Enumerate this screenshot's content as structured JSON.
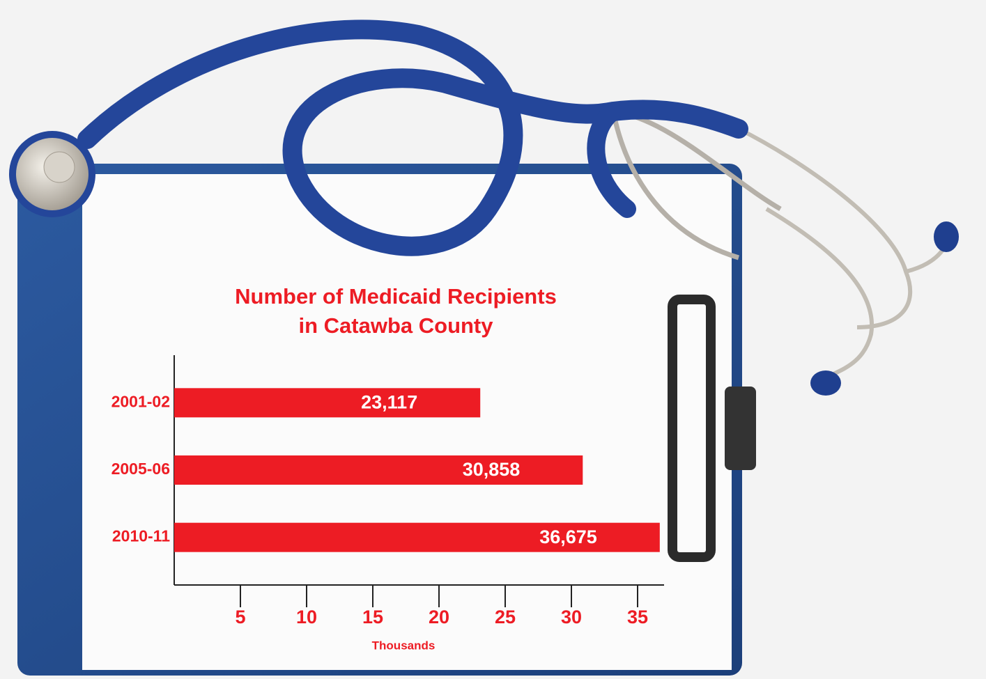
{
  "chart_data": {
    "type": "bar",
    "orientation": "horizontal",
    "title": [
      "Number of Medicaid Recipients",
      "in Catawba County"
    ],
    "categories": [
      "2001-02",
      "2005-06",
      "2010-11"
    ],
    "values": [
      23.117,
      30.858,
      36.675
    ],
    "value_labels": [
      "23,117",
      "30,858",
      "36,675"
    ],
    "color": "#ed1c24",
    "xlabel": "Thousands",
    "xlim": [
      0,
      37
    ],
    "xticks": [
      5,
      10,
      15,
      20,
      25,
      30,
      35
    ]
  }
}
